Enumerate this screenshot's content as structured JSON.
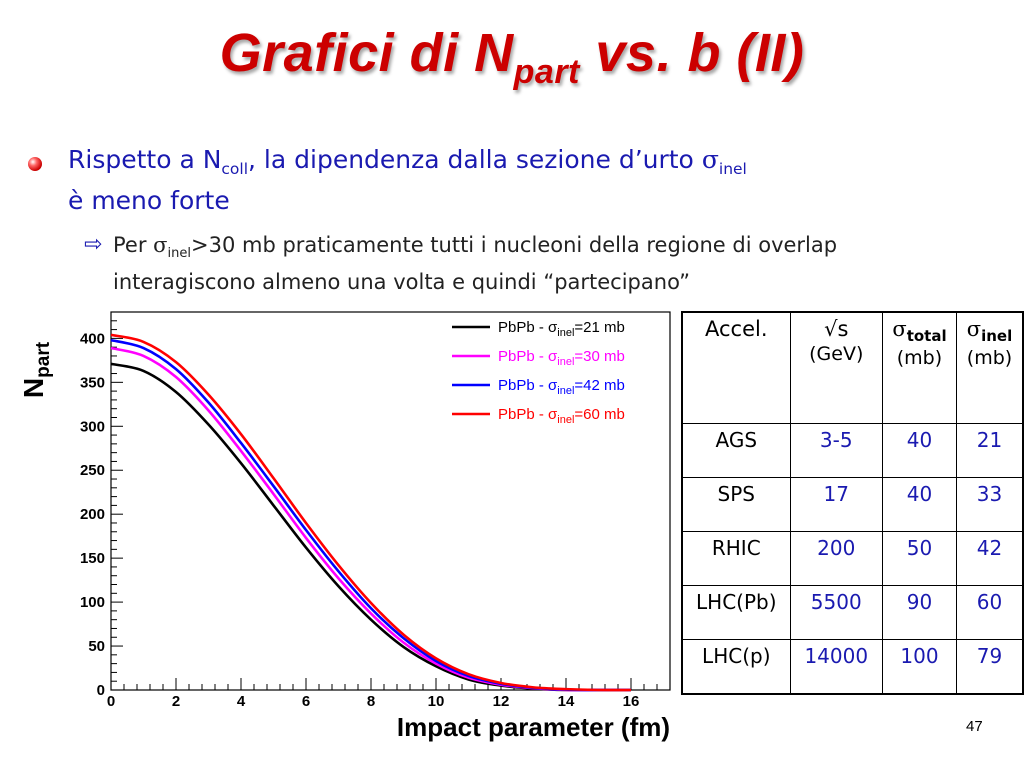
{
  "slide": {
    "title_main": "Grafici di  N",
    "title_sub": "part",
    "title_end": " vs. b (II)",
    "bullet1_a": "Rispetto a N",
    "bullet1_sub1": "coll",
    "bullet1_b": ", la dipendenza dalla sezione d’urto ",
    "bullet1_sigma": "σ",
    "bullet1_sub2": "inel",
    "bullet1_c": "è meno forte",
    "bullet2_a": "Per ",
    "bullet2_sigma": "σ",
    "bullet2_sub": "inel",
    "bullet2_b": ">30 mb praticamente tutti i nucleoni della regione di overlap interagiscono almeno una volta e quindi “partecipano”",
    "page_number": "47",
    "arrow_icon": "arrow-right-icon"
  },
  "table": {
    "headers": [
      {
        "main": "Accel.",
        "unit": ""
      },
      {
        "main": "√s",
        "unit": "(GeV)"
      },
      {
        "main": "σ",
        "sub": "total",
        "unit": "(mb)"
      },
      {
        "main": "σ",
        "sub": "inel",
        "unit": "(mb)"
      }
    ],
    "rows": [
      [
        "AGS",
        "3-5",
        "40",
        "21"
      ],
      [
        "SPS",
        "17",
        "40",
        "33"
      ],
      [
        "RHIC",
        "200",
        "50",
        "42"
      ],
      [
        "LHC(Pb)",
        "5500",
        "90",
        "60"
      ],
      [
        "LHC(p)",
        "14000",
        "100",
        "79"
      ]
    ]
  },
  "chart_data": {
    "type": "line",
    "xlabel": "Impact parameter (fm)",
    "ylabel_main": "N",
    "ylabel_sub": "part",
    "xlim": [
      0,
      17.2
    ],
    "ylim": [
      0,
      430
    ],
    "xticks": [
      0,
      2,
      4,
      6,
      8,
      10,
      12,
      14,
      16
    ],
    "yticks": [
      0,
      50,
      100,
      150,
      200,
      250,
      300,
      350,
      400
    ],
    "grid": false,
    "legend_position": "top-right",
    "x": [
      0,
      1,
      2,
      3,
      4,
      5,
      6,
      7,
      8,
      9,
      10,
      11,
      12,
      13,
      14,
      15,
      16
    ],
    "series": [
      {
        "label_a": "PbPb - σ",
        "label_sub": "inel",
        "label_b": "=21 mb",
        "color": "#000000",
        "values": [
          371,
          363,
          339,
          302,
          258,
          210,
          162,
          118,
          80,
          49,
          27,
          12,
          5,
          1.5,
          0,
          0,
          0
        ]
      },
      {
        "label_a": "PbPb - σ",
        "label_sub": "inel",
        "label_b": "=30 mb",
        "color": "#ff00ff",
        "values": [
          389,
          380,
          356,
          318,
          272,
          223,
          173,
          127,
          87,
          54,
          30,
          14,
          6,
          2,
          0,
          0,
          0
        ]
      },
      {
        "label_a": "PbPb - σ",
        "label_sub": "inel",
        "label_b": "=42 mb",
        "color": "#0000ff",
        "values": [
          398,
          389,
          365,
          327,
          281,
          232,
          182,
          135,
          93,
          59,
          33,
          16,
          7,
          2.5,
          0.5,
          0,
          0
        ]
      },
      {
        "label_a": "PbPb - σ",
        "label_sub": "inel",
        "label_b": "=60 mb",
        "color": "#ff0000",
        "values": [
          404,
          396,
          373,
          336,
          291,
          241,
          190,
          142,
          99,
          63,
          36,
          18,
          8,
          3,
          1,
          0,
          0
        ]
      }
    ]
  }
}
